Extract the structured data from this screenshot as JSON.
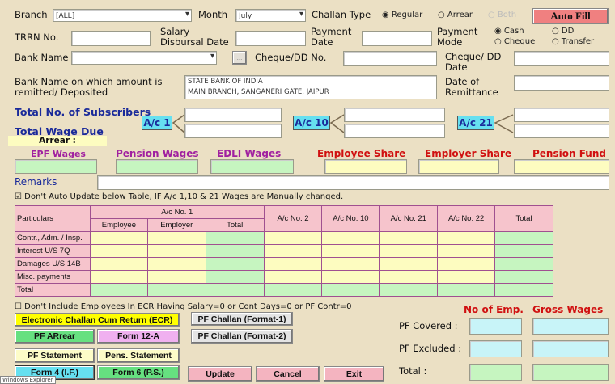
{
  "header": {
    "branch_label": "Branch",
    "branch_value": "[ALL]",
    "month_label": "Month",
    "month_value": "July",
    "challan_type_label": "Challan Type",
    "challan_types": [
      {
        "label": "Regular",
        "selected": true
      },
      {
        "label": "Arrear",
        "selected": false
      },
      {
        "label": "Both",
        "selected": false,
        "disabled": true
      }
    ],
    "auto_fill": "Auto Fill"
  },
  "fields": {
    "trrn_label": "TRRN No.",
    "salary_date_label": "Salary Disbursal Date",
    "payment_date_label": "Payment Date",
    "payment_mode_label": "Payment Mode",
    "payment_modes": [
      {
        "label": "Cash",
        "selected": true
      },
      {
        "label": "DD",
        "selected": false
      },
      {
        "label": "Cheque",
        "selected": false
      },
      {
        "label": "Transfer",
        "selected": false
      }
    ],
    "bank_name_label": "Bank Name",
    "browse_label": "...",
    "cheque_no_label": "Cheque/DD No.",
    "cheque_date_label": "Cheque/ DD Date",
    "remit_bank_label": "Bank Name on which amount is remitted/ Deposited",
    "remit_bank_lines": [
      "STATE BANK OF INDIA",
      "MAIN BRANCH, SANGANERI GATE, JAIPUR"
    ],
    "remit_date_label": "Date of Remittance"
  },
  "subscribers": {
    "subscribers_label": "Total No. of Subscribers",
    "wage_label": "Total Wage Due",
    "arrear_label": "Arrear :",
    "accounts": [
      "A/c 1",
      "A/c 10",
      "A/c 21"
    ]
  },
  "wages": {
    "labels": [
      "EPF Wages",
      "Pension Wages",
      "EDLI Wages",
      "Employee Share",
      "Employer Share",
      "Pension Fund"
    ],
    "remarks_label": "Remarks"
  },
  "auto_update_checkbox": {
    "label": "Don't Auto Update below Table, IF A/c 1,10 & 21 Wages are Manually changed.",
    "checked": true
  },
  "table": {
    "particulars": "Particulars",
    "ac1": "A/c No. 1",
    "sub": [
      "Employee",
      "Employer",
      "Total"
    ],
    "cols": [
      "A/c No. 2",
      "A/c No. 10",
      "A/c No. 21",
      "A/c No. 22",
      "Total"
    ],
    "rows": [
      "Contr., Adm. / Insp.",
      "Interest U/S 7Q",
      "Damages U/S 14B",
      "Misc. payments",
      "Total"
    ]
  },
  "ecr_checkbox": {
    "label": "Don't Include Employees In ECR Having Salary=0 or Cont Days=0 or PF Contr=0",
    "checked": false
  },
  "buttons": {
    "ecr": "Electronic Challan Cum Return (ECR)",
    "pf_challan_1": "PF Challan (Format-1)",
    "pf_arrear": "PF ARrear",
    "form12a": "Form 12-A",
    "pf_challan_2": "PF Challan (Format-2)",
    "pf_statement": "PF Statement",
    "pens_statement": "Pens. Statement",
    "form4": "Form 4 (I.F.)",
    "form6": "Form 6 (P.S.)",
    "update": "Update",
    "cancel": "Cancel",
    "exit": "Exit"
  },
  "summary": {
    "no_emp": "No of Emp.",
    "gross": "Gross Wages",
    "covered": "PF Covered :",
    "excluded": "PF Excluded :",
    "total": "Total :"
  },
  "tooltip": "Windows Explorer",
  "colors": {
    "background": "#ebe0c4",
    "auto_fill": "#f08080",
    "ecr": "#ffff00",
    "green": "#66e080",
    "pink": "#f4b4c0"
  }
}
